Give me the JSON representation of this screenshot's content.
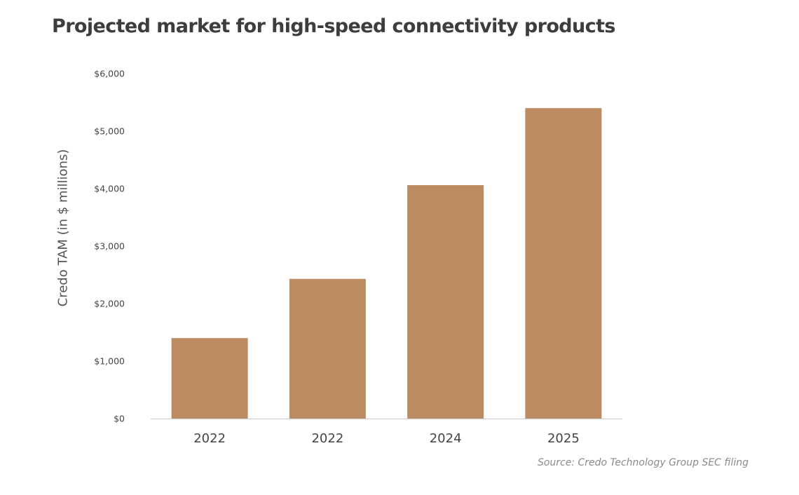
{
  "chart_data": {
    "type": "bar",
    "title": "Projected market for high-speed connectivity products",
    "ylabel": "Credo TAM (in $ millions)",
    "xlabel": "",
    "categories": [
      "2022",
      "2022",
      "2024",
      "2025"
    ],
    "values": [
      1400,
      2430,
      4060,
      5400
    ],
    "ylim": [
      0,
      6000
    ],
    "yticks": [
      0,
      1000,
      2000,
      3000,
      4000,
      5000,
      6000
    ],
    "ytick_labels": [
      "$0",
      "$1,000",
      "$2,000",
      "$3,000",
      "$4,000",
      "$5,000",
      "$6,000"
    ],
    "grid": false,
    "legend": "none",
    "bar_color": "#bc8b61",
    "source": "Source: Credo Technology Group SEC filing"
  }
}
